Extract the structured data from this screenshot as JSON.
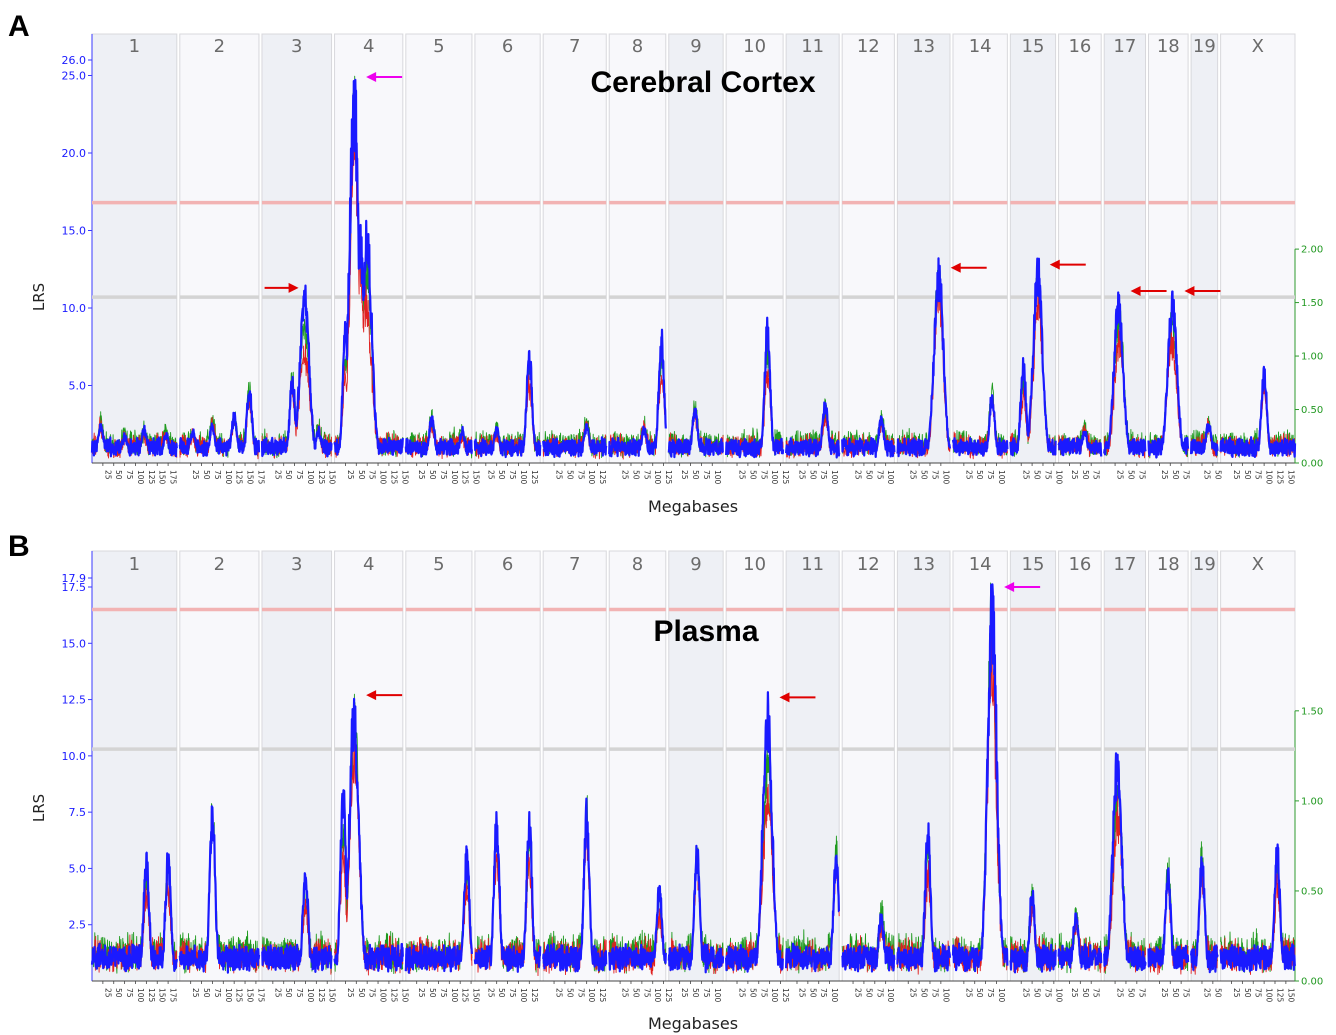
{
  "figure": {
    "panels": [
      {
        "letter": "A",
        "title": "Cerebral Cortex"
      },
      {
        "letter": "B",
        "title": "Plasma"
      }
    ]
  },
  "colors": {
    "lrs_line": "#1a1aff",
    "red_line": "#e02020",
    "green_line": "#1e9a1e",
    "significant_threshold": "#f2b3b3",
    "suggestive_threshold": "#d4d4d4",
    "band_shaded": "#eef0f5",
    "band_light": "#f8f8fb",
    "peak_arrow": "#ee00ee",
    "arrow": "#e00000"
  },
  "chart_data": [
    {
      "type": "line",
      "panel": "A",
      "title": "Cerebral Cortex",
      "xlabel": "Megabases",
      "ylabel": "LRS",
      "chromosomes": [
        "1",
        "2",
        "3",
        "4",
        "5",
        "6",
        "7",
        "8",
        "9",
        "10",
        "11",
        "12",
        "13",
        "14",
        "15",
        "16",
        "17",
        "18",
        "19",
        "X"
      ],
      "chromosome_lengths_mb": [
        195,
        182,
        160,
        157,
        152,
        150,
        145,
        130,
        125,
        131,
        122,
        120,
        121,
        125,
        104,
        98,
        95,
        91,
        61,
        171
      ],
      "ylim": [
        0,
        26.0
      ],
      "y_ticks": [
        "5.0",
        "10.0",
        "15.0",
        "20.0",
        "25.0",
        "26.0"
      ],
      "y2lim": [
        0,
        2.0
      ],
      "y2_ticks": [
        "0.00",
        "0.50",
        "1.00",
        "1.50",
        "2.00"
      ],
      "thresholds": {
        "significant": 16.8,
        "suggestive": 10.7
      },
      "peaks": [
        {
          "chr": "1",
          "pos_mb": 20,
          "lrs": 2.5
        },
        {
          "chr": "1",
          "pos_mb": 75,
          "lrs": 1.7
        },
        {
          "chr": "1",
          "pos_mb": 120,
          "lrs": 2.2
        },
        {
          "chr": "1",
          "pos_mb": 170,
          "lrs": 1.8
        },
        {
          "chr": "2",
          "pos_mb": 30,
          "lrs": 2.0
        },
        {
          "chr": "2",
          "pos_mb": 75,
          "lrs": 2.4
        },
        {
          "chr": "2",
          "pos_mb": 125,
          "lrs": 3.0
        },
        {
          "chr": "2",
          "pos_mb": 160,
          "lrs": 4.8
        },
        {
          "chr": "3",
          "pos_mb": 70,
          "lrs": 5.5
        },
        {
          "chr": "3",
          "pos_mb": 98,
          "lrs": 11.7
        },
        {
          "chr": "3",
          "pos_mb": 130,
          "lrs": 2.0
        },
        {
          "chr": "4",
          "pos_mb": 25,
          "lrs": 9.0
        },
        {
          "chr": "4",
          "pos_mb": 45,
          "lrs": 25.8
        },
        {
          "chr": "4",
          "pos_mb": 58,
          "lrs": 15.5
        },
        {
          "chr": "4",
          "pos_mb": 75,
          "lrs": 15.8
        },
        {
          "chr": "5",
          "pos_mb": 60,
          "lrs": 3.0
        },
        {
          "chr": "5",
          "pos_mb": 130,
          "lrs": 2.0
        },
        {
          "chr": "6",
          "pos_mb": 50,
          "lrs": 2.2
        },
        {
          "chr": "6",
          "pos_mb": 125,
          "lrs": 7.5
        },
        {
          "chr": "7",
          "pos_mb": 100,
          "lrs": 2.5
        },
        {
          "chr": "8",
          "pos_mb": 80,
          "lrs": 2.2
        },
        {
          "chr": "8",
          "pos_mb": 120,
          "lrs": 8.6
        },
        {
          "chr": "9",
          "pos_mb": 60,
          "lrs": 3.5
        },
        {
          "chr": "10",
          "pos_mb": 95,
          "lrs": 9.4
        },
        {
          "chr": "11",
          "pos_mb": 90,
          "lrs": 4.0
        },
        {
          "chr": "12",
          "pos_mb": 90,
          "lrs": 3.0
        },
        {
          "chr": "13",
          "pos_mb": 95,
          "lrs": 13.2
        },
        {
          "chr": "14",
          "pos_mb": 90,
          "lrs": 4.5
        },
        {
          "chr": "15",
          "pos_mb": 30,
          "lrs": 6.8
        },
        {
          "chr": "15",
          "pos_mb": 63,
          "lrs": 13.3
        },
        {
          "chr": "16",
          "pos_mb": 60,
          "lrs": 2.0
        },
        {
          "chr": "17",
          "pos_mb": 33,
          "lrs": 11.0
        },
        {
          "chr": "18",
          "pos_mb": 55,
          "lrs": 11.1
        },
        {
          "chr": "19",
          "pos_mb": 40,
          "lrs": 2.5
        },
        {
          "chr": "X",
          "pos_mb": 100,
          "lrs": 6.2
        }
      ],
      "annotations": [
        {
          "kind": "magenta-arrow",
          "chr": "4",
          "lrs": 24.9
        },
        {
          "kind": "red-arrow-right",
          "chr": "3",
          "lrs": 11.3
        },
        {
          "kind": "red-arrow",
          "chr": "13",
          "lrs": 12.6
        },
        {
          "kind": "red-arrow",
          "chr": "15",
          "lrs": 12.8
        },
        {
          "kind": "red-arrow",
          "chr": "17",
          "lrs": 11.1
        },
        {
          "kind": "red-arrow",
          "chr": "18",
          "lrs": 11.1
        }
      ]
    },
    {
      "type": "line",
      "panel": "B",
      "title": "Plasma",
      "xlabel": "Megabases",
      "ylabel": "LRS",
      "chromosomes": [
        "1",
        "2",
        "3",
        "4",
        "5",
        "6",
        "7",
        "8",
        "9",
        "10",
        "11",
        "12",
        "13",
        "14",
        "15",
        "16",
        "17",
        "18",
        "19",
        "X"
      ],
      "chromosome_lengths_mb": [
        195,
        182,
        160,
        157,
        152,
        150,
        145,
        130,
        125,
        131,
        122,
        120,
        121,
        125,
        104,
        98,
        95,
        91,
        61,
        171
      ],
      "ylim": [
        0,
        17.9
      ],
      "y_ticks": [
        "2.5",
        "5.0",
        "7.5",
        "10.0",
        "12.5",
        "15.0",
        "17.5",
        "17.9"
      ],
      "y2lim": [
        0,
        1.5
      ],
      "y2_ticks": [
        "0.00",
        "0.50",
        "1.00",
        "1.50"
      ],
      "thresholds": {
        "significant": 16.5,
        "suggestive": 10.3
      },
      "peaks": [
        {
          "chr": "1",
          "pos_mb": 125,
          "lrs": 5.7
        },
        {
          "chr": "1",
          "pos_mb": 175,
          "lrs": 5.7
        },
        {
          "chr": "2",
          "pos_mb": 75,
          "lrs": 8.1
        },
        {
          "chr": "3",
          "pos_mb": 100,
          "lrs": 5.0
        },
        {
          "chr": "4",
          "pos_mb": 20,
          "lrs": 8.9
        },
        {
          "chr": "4",
          "pos_mb": 45,
          "lrs": 12.9
        },
        {
          "chr": "5",
          "pos_mb": 140,
          "lrs": 6.0
        },
        {
          "chr": "6",
          "pos_mb": 50,
          "lrs": 7.5
        },
        {
          "chr": "6",
          "pos_mb": 125,
          "lrs": 7.5
        },
        {
          "chr": "7",
          "pos_mb": 100,
          "lrs": 8.1
        },
        {
          "chr": "8",
          "pos_mb": 115,
          "lrs": 4.3
        },
        {
          "chr": "9",
          "pos_mb": 65,
          "lrs": 6.0
        },
        {
          "chr": "10",
          "pos_mb": 95,
          "lrs": 12.9
        },
        {
          "chr": "11",
          "pos_mb": 115,
          "lrs": 5.8
        },
        {
          "chr": "12",
          "pos_mb": 90,
          "lrs": 3.0
        },
        {
          "chr": "13",
          "pos_mb": 70,
          "lrs": 7.0
        },
        {
          "chr": "14",
          "pos_mb": 90,
          "lrs": 17.8
        },
        {
          "chr": "15",
          "pos_mb": 50,
          "lrs": 4.0
        },
        {
          "chr": "16",
          "pos_mb": 40,
          "lrs": 3.0
        },
        {
          "chr": "17",
          "pos_mb": 30,
          "lrs": 10.2
        },
        {
          "chr": "18",
          "pos_mb": 45,
          "lrs": 5.0
        },
        {
          "chr": "19",
          "pos_mb": 25,
          "lrs": 5.5
        },
        {
          "chr": "X",
          "pos_mb": 130,
          "lrs": 6.3
        }
      ],
      "annotations": [
        {
          "kind": "magenta-arrow",
          "chr": "14",
          "lrs": 17.5
        },
        {
          "kind": "red-arrow",
          "chr": "4",
          "lrs": 12.7
        },
        {
          "kind": "red-arrow",
          "chr": "10",
          "lrs": 12.6
        }
      ]
    }
  ]
}
